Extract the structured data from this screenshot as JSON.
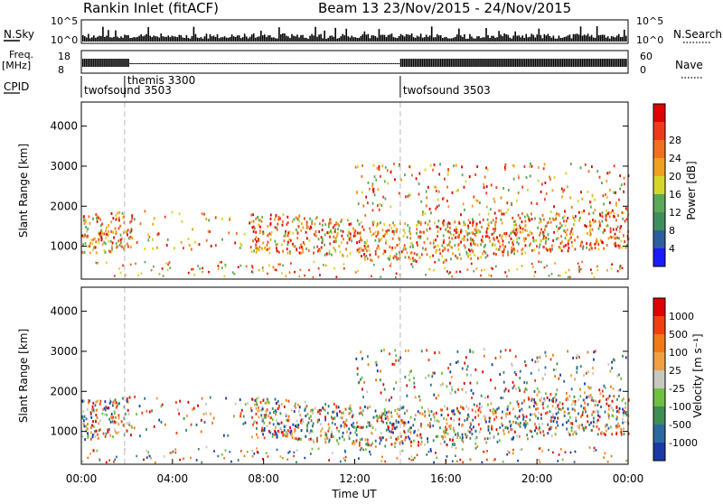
{
  "header": {
    "station": "Rankin Inlet (fitACF)",
    "beam_date": "Beam 13  23/Nov/2015 - 24/Nov/2015"
  },
  "top_strips": {
    "nsky_label": "N.Sky",
    "nsky_ticks": [
      "10^5",
      "10^0"
    ],
    "nsearch_label": "N.Search",
    "nsearch_ticks": [
      "10^5",
      "10^0"
    ],
    "freq_label": "Freq.",
    "freq_unit": "[MHz]",
    "freq_ticks": [
      "18",
      "8"
    ],
    "nave_label": "Nave",
    "nave_ticks": [
      "60",
      "0"
    ],
    "cpid_label": "CPID",
    "cpid_segments": [
      {
        "name": "twofsound 3503",
        "start_hour": 0.0
      },
      {
        "name": "themis 3300",
        "start_hour": 1.9
      },
      {
        "name": "twofsound 3503",
        "start_hour": 14.0
      }
    ]
  },
  "chart_data": [
    {
      "type": "heatmap",
      "panel": "power",
      "xlabel": "",
      "ylabel": "Slant Range [km]",
      "xlim_hours": [
        0,
        24
      ],
      "ylim": [
        180,
        4600
      ],
      "yticks": [
        1000,
        2000,
        3000,
        4000
      ],
      "colorbar": {
        "label": "Power [dB]",
        "ticks": [
          "4",
          "8",
          "12",
          "16",
          "20",
          "24",
          "28"
        ],
        "colors": [
          "#1a1aff",
          "#2c5fa0",
          "#3f8f5e",
          "#5aa85a",
          "#d6d62a",
          "#f0a020",
          "#f07020",
          "#ee3a1a",
          "#e00000"
        ]
      }
    },
    {
      "type": "heatmap",
      "panel": "velocity",
      "xlabel": "Time UT",
      "ylabel": "Slant Range [km]",
      "xlim_hours": [
        0,
        24
      ],
      "ylim": [
        180,
        4600
      ],
      "yticks": [
        1000,
        2000,
        3000,
        4000
      ],
      "xticks": [
        "00:00",
        "04:00",
        "08:00",
        "12:00",
        "16:00",
        "20:00",
        "00:00"
      ],
      "colorbar": {
        "label": "Velocity [m s⁻¹]",
        "ticks": [
          "1000",
          "500",
          "100",
          "25",
          "-25",
          "-100",
          "-500",
          "-1000"
        ],
        "colors": [
          "#1a3aa8",
          "#2a6aa0",
          "#3e8e55",
          "#6ec040",
          "#c8c8c0",
          "#f0a040",
          "#f07a18",
          "#f04010",
          "#e00000"
        ]
      }
    }
  ]
}
